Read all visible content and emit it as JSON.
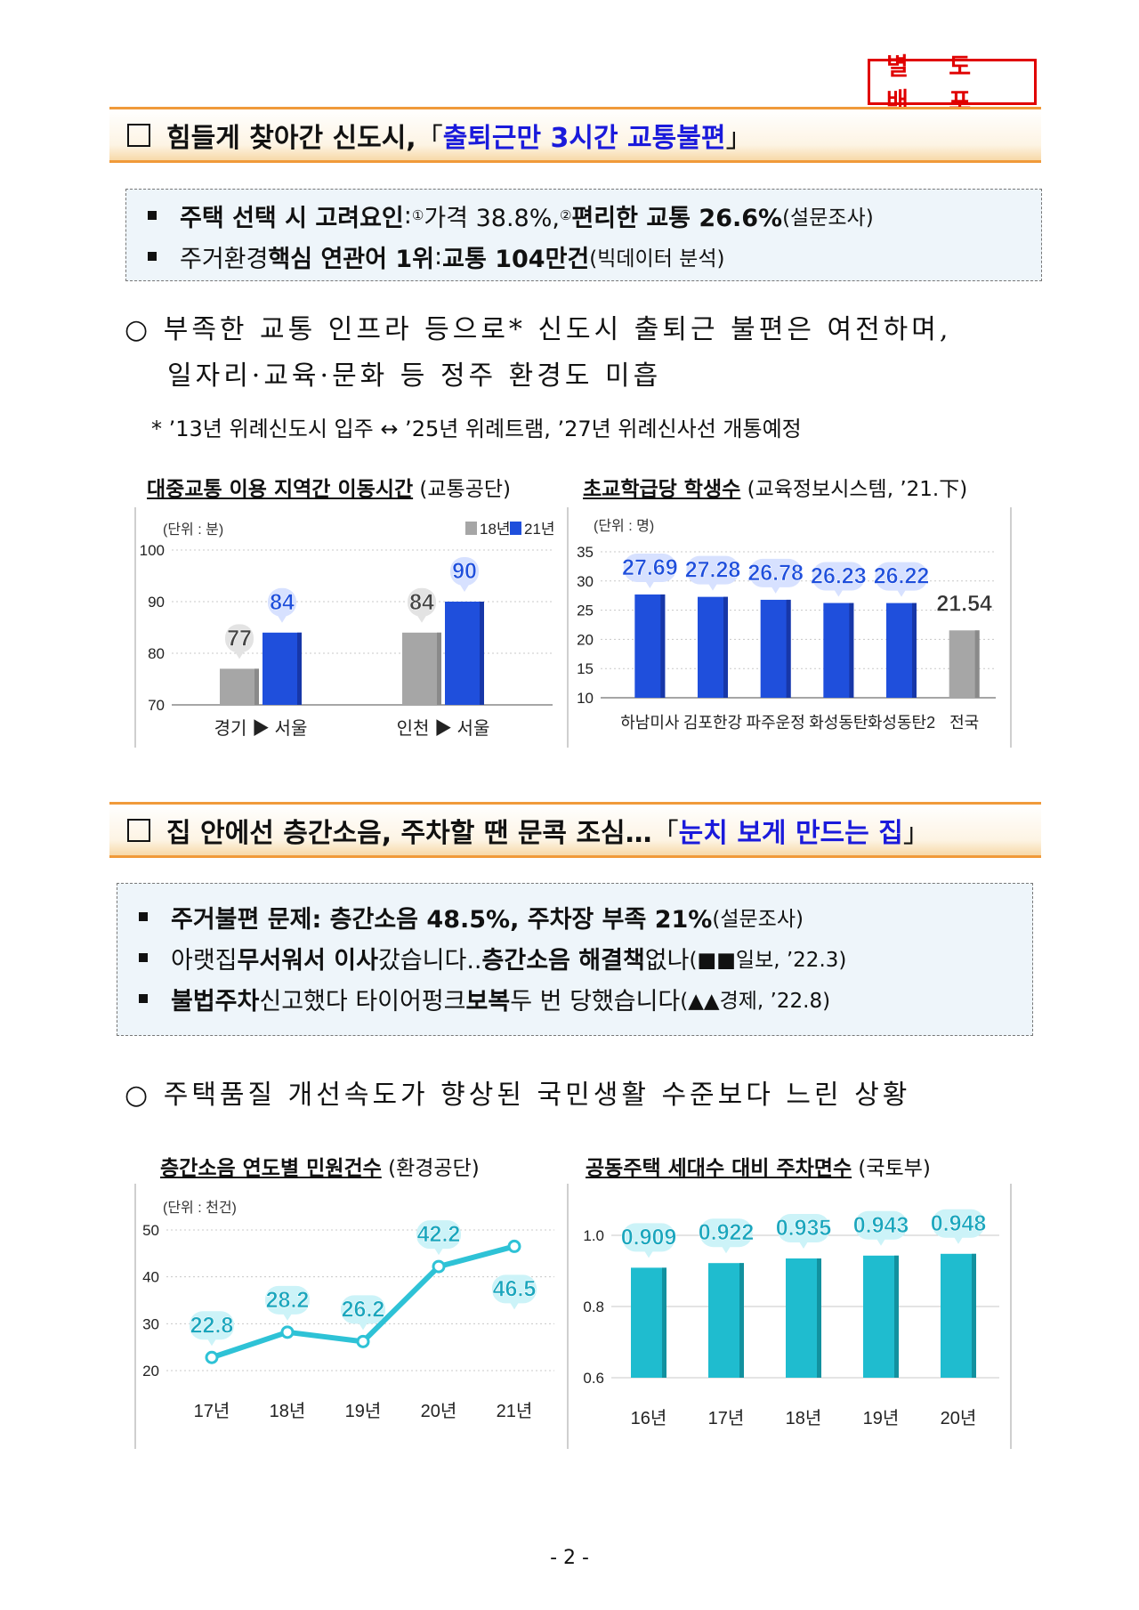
{
  "stamp": "별 도 배 포",
  "section1": {
    "title_main": "힘들게 찾아간 신도시, ",
    "title_hl": "출퇴근만 3시간 교통불편",
    "title_open": "「",
    "title_close": "」",
    "summary": {
      "r1_a": "주택 선택 시 고려요인",
      "r1_colon": ": ",
      "r1_n1": "①",
      "r1_b": " 가격 38.8%, ",
      "r1_n2": "②",
      "r1_c": " 편리한 교통 26.6%",
      "r1_d": "(설문조사)",
      "r2_a": "주거환경 ",
      "r2_b": "핵심 연관어 1위",
      "r2_c": ": ",
      "r2_d": "교통 104만건",
      "r2_e": "(빅데이터 분석)"
    },
    "point_l1": "○ 부족한 교통 인프라 등으로* 신도시 출퇴근 불편은 여전하며,",
    "point_l2": "일자리·교육·문화 등 정주 환경도 미흡",
    "footnote": "* ’13년 위례신도시 입주 ↔ ’25년 위례트램, ’27년 위례신사선 개통예정",
    "chart1_title": "대중교통 이용 지역간 이동시간",
    "chart1_src": " (교통공단)",
    "chart2_title": "초교학급당 학생수",
    "chart2_src": " (교육정보시스템, ’21.下)"
  },
  "section2": {
    "title_main": "집 안에선 층간소음, 주차할 땐 문콕 조심…",
    "title_hl": "눈치 보게 만드는 집",
    "title_open": "「",
    "title_close": "」",
    "summary": {
      "r1_a": "주거불편 문제",
      "r1_b": ": 층간소음 48.5%, 주차장 부족 21%",
      "r1_c": "(설문조사)",
      "r2_a": "아랫집 ",
      "r2_b": "무서워서 이사",
      "r2_c": "갔습니다.. ",
      "r2_d": "층간소음 해결책",
      "r2_e": " 없나",
      "r2_f": "(■■일보, ’22.3)",
      "r3_a": "불법주차",
      "r3_b": " 신고했다 타이어펑크 ",
      "r3_c": "보복",
      "r3_d": " 두 번 당했습니다",
      "r3_e": "(▲▲경제, ’22.8)"
    },
    "point_l1": "○ 주택품질 개선속도가 향상된 국민생활 수준보다 느린 상황",
    "chart3_title": "층간소음 연도별 민원건수",
    "chart3_src": " (환경공단)",
    "chart4_title": "공동주택 세대수 대비 주차면수",
    "chart4_src": " (국토부)"
  },
  "page_number": "- 2 -",
  "chart_data": [
    {
      "type": "bar",
      "title": "대중교통 이용 지역간 이동시간",
      "unit": "(단위 : 분)",
      "categories": [
        "경기 ▶ 서울",
        "인천 ▶ 서울"
      ],
      "series": [
        {
          "name": "18년",
          "values": [
            77,
            84
          ],
          "color": "#a6a6a6"
        },
        {
          "name": "21년",
          "values": [
            84,
            90
          ],
          "color": "#1f4fdc"
        }
      ],
      "ylim": [
        70,
        100
      ],
      "yticks": [
        "70",
        "80",
        "90",
        "100"
      ],
      "legend": "top-right"
    },
    {
      "type": "bar",
      "title": "초교학급당 학생수",
      "unit": "(단위 : 명)",
      "categories": [
        "하남미사",
        "김포한강",
        "파주운정",
        "화성동탄",
        "화성동탄2",
        "전국"
      ],
      "values": [
        27.69,
        27.28,
        26.78,
        26.23,
        26.22,
        21.54
      ],
      "labels": [
        "27.69",
        "27.28",
        "26.78",
        "26.23",
        "26.22",
        "21.54"
      ],
      "colors": [
        "#1f4fdc",
        "#1f4fdc",
        "#1f4fdc",
        "#1f4fdc",
        "#1f4fdc",
        "#a6a6a6"
      ],
      "ylim": [
        10,
        35
      ],
      "yticks": [
        "10",
        "15",
        "20",
        "25",
        "30",
        "35"
      ]
    },
    {
      "type": "line",
      "title": "층간소음 연도별 민원건수",
      "unit": "(단위 : 천건)",
      "categories": [
        "17년",
        "18년",
        "19년",
        "20년",
        "21년"
      ],
      "values": [
        22.8,
        28.2,
        26.2,
        42.2,
        46.5
      ],
      "labels": [
        "22.8",
        "28.2",
        "26.2",
        "42.2",
        "46.5"
      ],
      "color": "#2ec2d6",
      "ylim": [
        20,
        50
      ],
      "yticks": [
        "20",
        "30",
        "40",
        "50"
      ]
    },
    {
      "type": "bar",
      "title": "공동주택 세대수 대비 주차면수",
      "categories": [
        "16년",
        "17년",
        "18년",
        "19년",
        "20년"
      ],
      "values": [
        0.909,
        0.922,
        0.935,
        0.943,
        0.948
      ],
      "labels": [
        "0.909",
        "0.922",
        "0.935",
        "0.943",
        "0.948"
      ],
      "color": "#1fbccf",
      "ylim": [
        0.6,
        1.0
      ],
      "yticks": [
        "0.6",
        "0.8",
        "1.0"
      ]
    }
  ]
}
